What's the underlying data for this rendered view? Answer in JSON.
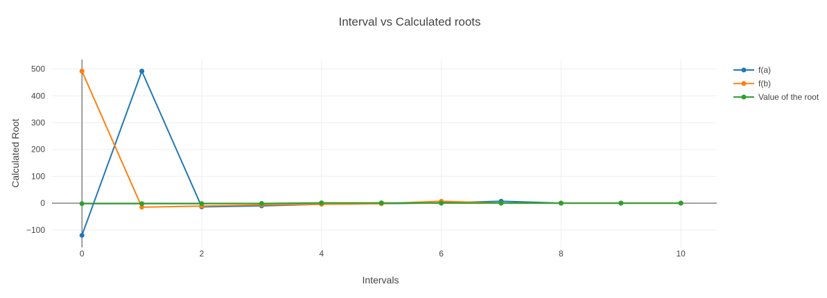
{
  "chart_data": {
    "type": "line",
    "title": "Interval vs Calculated roots",
    "xlabel": "Intervals",
    "ylabel": "Calculated Root",
    "xlim": [
      -0.5,
      10.6
    ],
    "ylim": [
      -165,
      535
    ],
    "xticks": [
      0,
      2,
      4,
      6,
      8,
      10
    ],
    "yticks": [
      -100,
      0,
      100,
      200,
      300,
      400,
      500
    ],
    "ytick_labels": [
      "−100",
      "0",
      "100",
      "200",
      "300",
      "400",
      "500"
    ],
    "grid": true,
    "legend_position": "top-right",
    "x": [
      0,
      1,
      2,
      3,
      4,
      5,
      6,
      7,
      8,
      9,
      10
    ],
    "series": [
      {
        "name": "f(a)",
        "color": "#1f77b4",
        "values": [
          -120,
          492,
          -14,
          -10,
          -4,
          -2,
          1,
          7,
          0,
          0,
          0
        ]
      },
      {
        "name": "f(b)",
        "color": "#ff7f0e",
        "values": [
          492,
          -15,
          -11,
          -6,
          -4,
          -2,
          7,
          0,
          0,
          0,
          0
        ]
      },
      {
        "name": "Value of the root",
        "color": "#2ca02c",
        "values": [
          -2,
          -2,
          -2,
          -1,
          1,
          1,
          0,
          0,
          0,
          0,
          0
        ]
      }
    ]
  }
}
